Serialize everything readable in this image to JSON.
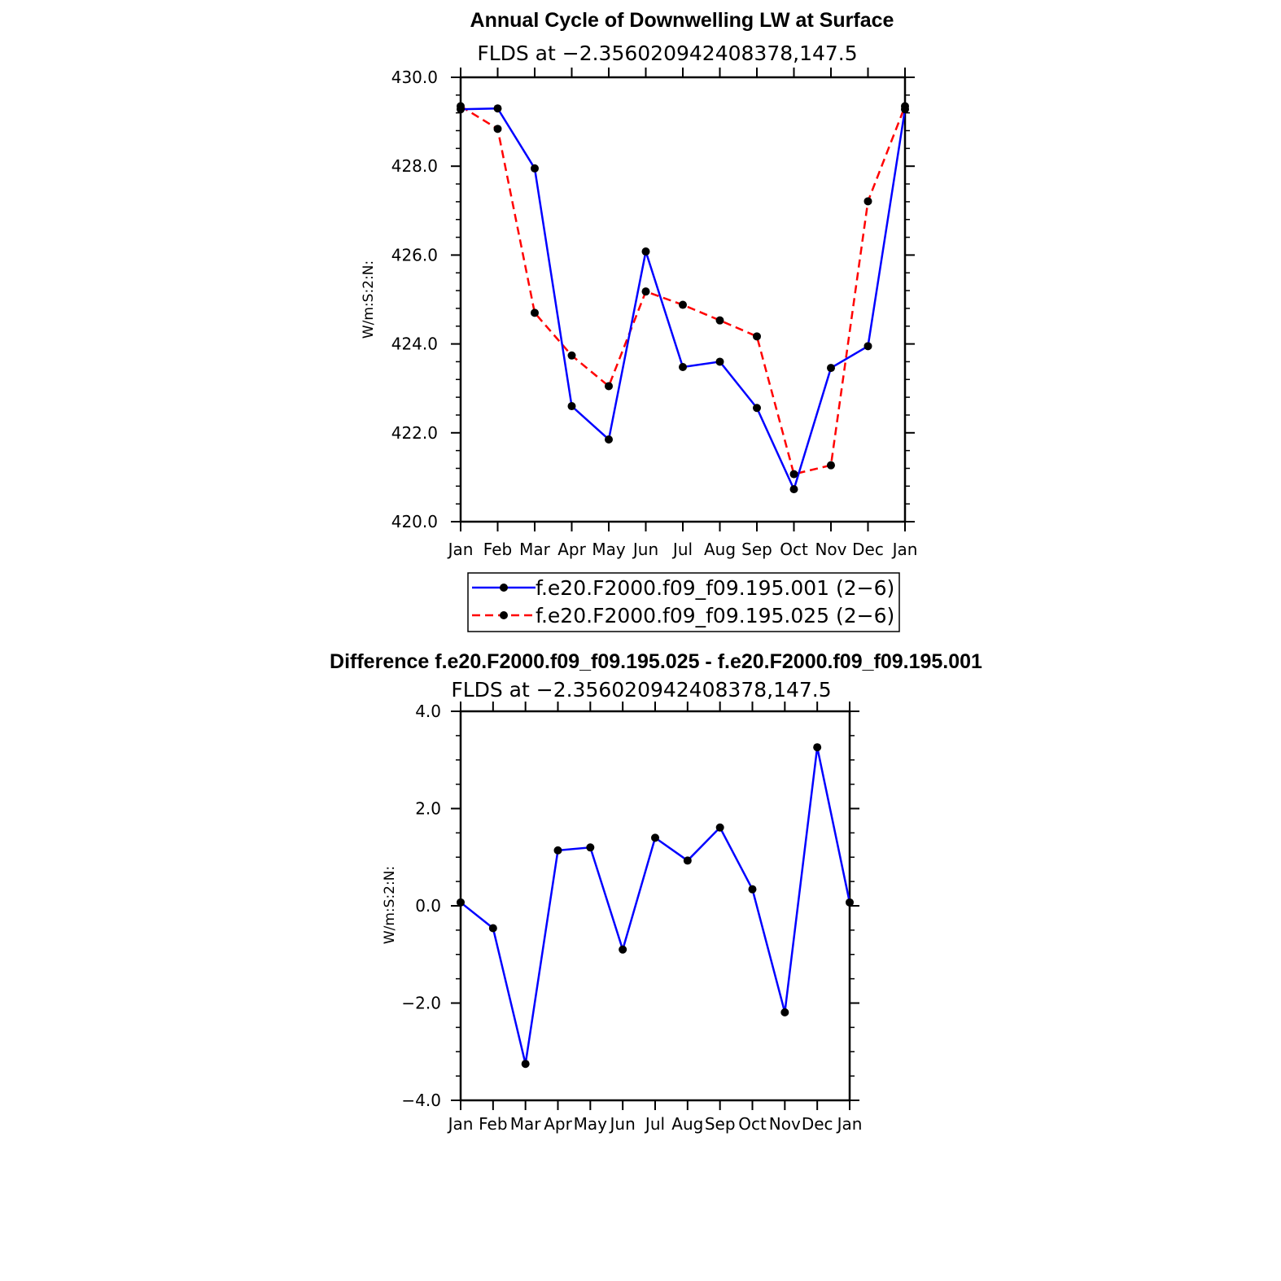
{
  "chart_data": [
    {
      "type": "line",
      "title": "Annual Cycle of Downwelling LW at Surface",
      "subtitle": "FLDS at −2.356020942408378,147.5",
      "ylabel": "W/m:S:2:N:",
      "xlabel": "",
      "categories": [
        "Jan",
        "Feb",
        "Mar",
        "Apr",
        "May",
        "Jun",
        "Jul",
        "Aug",
        "Sep",
        "Oct",
        "Nov",
        "Dec",
        "Jan"
      ],
      "ylim": [
        420.0,
        430.0
      ],
      "yticks": [
        "420.0",
        "422.0",
        "424.0",
        "426.0",
        "428.0",
        "430.0"
      ],
      "series": [
        {
          "name": "f.e20.F2000.f09_f09.195.001 (2−6)",
          "color": "#0000ff",
          "dash": "solid",
          "values": [
            429.28,
            429.3,
            427.95,
            422.6,
            421.85,
            426.08,
            423.48,
            423.6,
            422.56,
            420.73,
            423.46,
            423.95,
            429.28
          ]
        },
        {
          "name": "f.e20.F2000.f09_f09.195.025 (2−6)",
          "color": "#ff0000",
          "dash": "dashed",
          "values": [
            429.35,
            428.84,
            424.7,
            423.74,
            423.05,
            425.18,
            424.88,
            424.53,
            424.17,
            421.07,
            421.27,
            427.21,
            429.35
          ]
        }
      ],
      "legend_placement": "bottom"
    },
    {
      "type": "line",
      "title": "Difference f.e20.F2000.f09_f09.195.025 - f.e20.F2000.f09_f09.195.001",
      "subtitle": "FLDS at −2.356020942408378,147.5",
      "ylabel": "W/m:S:2:N:",
      "xlabel": "",
      "categories": [
        "Jan",
        "Feb",
        "Mar",
        "Apr",
        "May",
        "Jun",
        "Jul",
        "Aug",
        "Sep",
        "Oct",
        "Nov",
        "Dec",
        "Jan"
      ],
      "ylim": [
        -4.0,
        4.0
      ],
      "yticks": [
        "−4.0",
        "−2.0",
        "0.0",
        "2.0",
        "4.0"
      ],
      "series": [
        {
          "name": "",
          "color": "#0000ff",
          "dash": "solid",
          "values": [
            0.07,
            -0.46,
            -3.25,
            1.14,
            1.2,
            -0.9,
            1.4,
            0.93,
            1.61,
            0.34,
            -2.19,
            3.26,
            0.07
          ]
        }
      ]
    }
  ]
}
